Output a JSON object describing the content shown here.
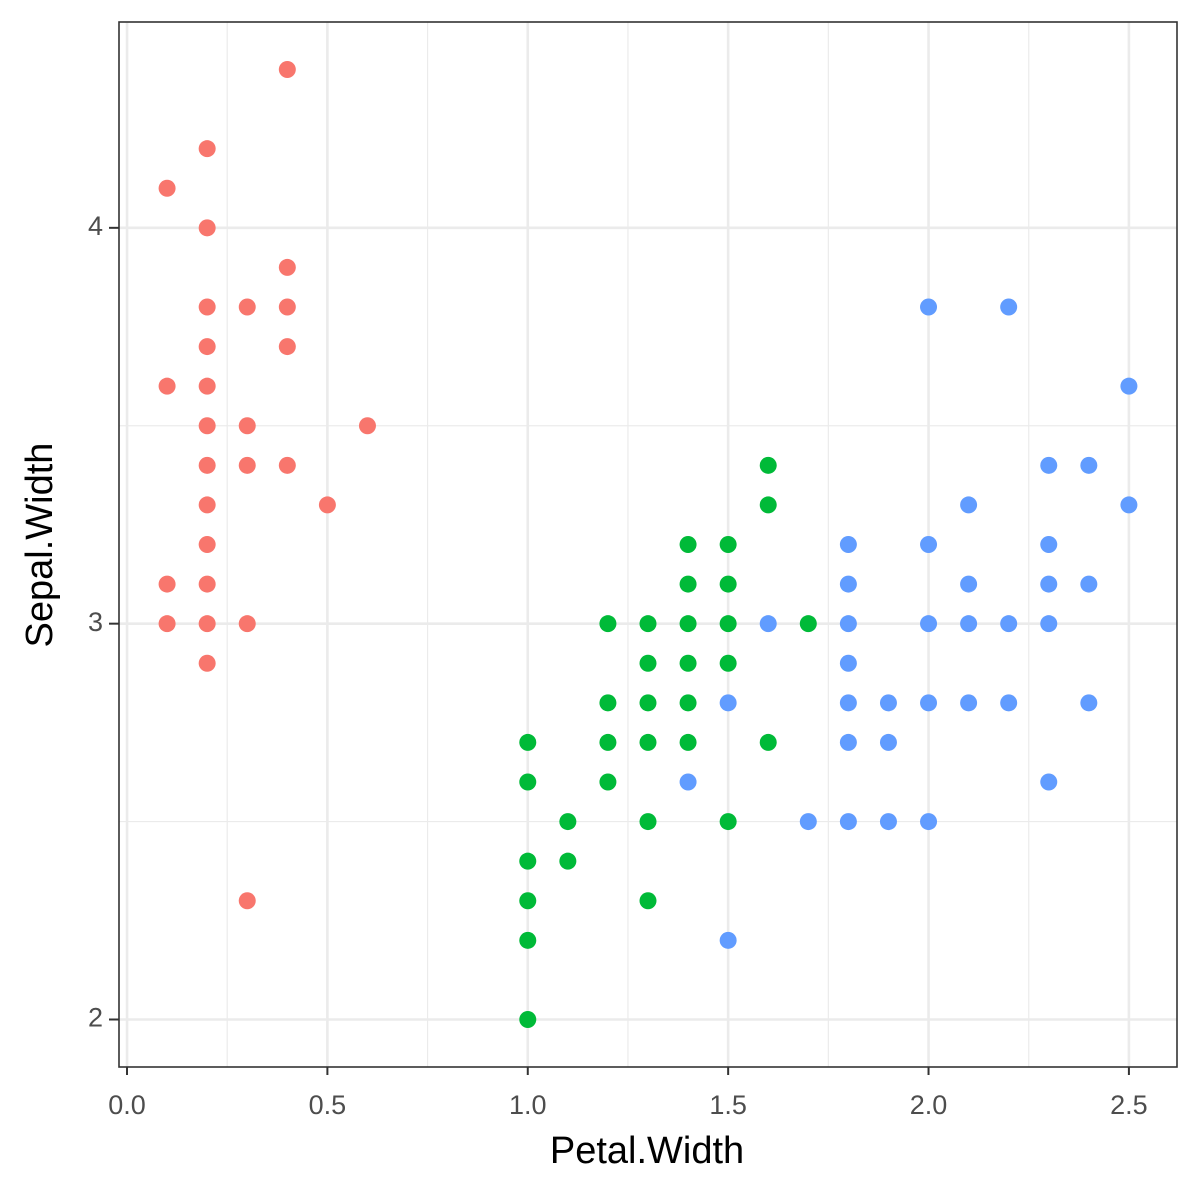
{
  "chart_data": {
    "type": "scatter",
    "x_label": "Petal.Width",
    "y_label": "Sepal.Width",
    "xlim": [
      -0.02,
      2.62
    ],
    "ylim": [
      1.88,
      4.52
    ],
    "xticks": [
      {
        "value": 0,
        "label": "0.0"
      },
      0.5,
      {
        "value": 1,
        "label": "1.0"
      },
      1.5,
      {
        "value": 2,
        "label": "2.0"
      },
      2.5
    ],
    "yticks": [
      2,
      3,
      4
    ],
    "x_minor_grid": [
      0.25,
      0.75,
      1.25,
      1.75,
      2.25
    ],
    "y_minor_grid": [
      2.5,
      3.5
    ],
    "grid": true,
    "series": [
      {
        "color": "#f8766d",
        "x": [
          0.1,
          0.1,
          0.1,
          0.1,
          0.2,
          0.2,
          0.2,
          0.2,
          0.2,
          0.2,
          0.2,
          0.2,
          0.2,
          0.2,
          0.2,
          0.2,
          0.3,
          0.3,
          0.3,
          0.3,
          0.3,
          0.4,
          0.4,
          0.4,
          0.4,
          0.4,
          0.5,
          0.6
        ],
        "y": [
          4.1,
          3.6,
          3.1,
          3.0,
          4.2,
          4.0,
          3.8,
          3.7,
          3.6,
          3.5,
          3.4,
          3.3,
          3.2,
          3.1,
          3.0,
          2.9,
          3.8,
          3.5,
          3.4,
          3.0,
          2.3,
          4.4,
          3.9,
          3.8,
          3.7,
          3.4,
          3.3,
          3.5
        ]
      },
      {
        "color": "#00ba38",
        "x": [
          1.0,
          1.0,
          1.0,
          1.0,
          1.0,
          1.0,
          1.1,
          1.1,
          1.2,
          1.2,
          1.2,
          1.2,
          1.3,
          1.3,
          1.3,
          1.3,
          1.3,
          1.3,
          1.4,
          1.4,
          1.4,
          1.4,
          1.4,
          1.4,
          1.5,
          1.5,
          1.5,
          1.5,
          1.5,
          1.6,
          1.6,
          1.6,
          1.7
        ],
        "y": [
          2.7,
          2.6,
          2.4,
          2.3,
          2.2,
          2.0,
          2.5,
          2.4,
          3.0,
          2.8,
          2.7,
          2.6,
          3.0,
          2.9,
          2.8,
          2.7,
          2.5,
          2.3,
          3.2,
          3.1,
          3.0,
          2.9,
          2.8,
          2.7,
          3.2,
          3.1,
          3.0,
          2.9,
          2.5,
          3.4,
          3.3,
          2.7,
          3.0
        ]
      },
      {
        "color": "#619cff",
        "x": [
          1.4,
          1.5,
          1.5,
          1.6,
          1.7,
          1.8,
          1.8,
          1.8,
          1.8,
          1.8,
          1.8,
          1.8,
          1.9,
          1.9,
          1.9,
          2.0,
          2.0,
          2.0,
          2.0,
          2.0,
          2.1,
          2.1,
          2.1,
          2.1,
          2.2,
          2.2,
          2.2,
          2.3,
          2.3,
          2.3,
          2.3,
          2.3,
          2.4,
          2.4,
          2.4,
          2.5,
          2.5
        ],
        "y": [
          2.6,
          2.8,
          2.2,
          3.0,
          2.5,
          3.2,
          3.1,
          3.0,
          2.9,
          2.8,
          2.7,
          2.5,
          2.8,
          2.7,
          2.5,
          3.8,
          3.2,
          3.0,
          2.8,
          2.5,
          3.3,
          3.1,
          3.0,
          2.8,
          3.8,
          3.0,
          2.8,
          3.4,
          3.2,
          3.1,
          3.0,
          2.6,
          3.4,
          3.1,
          2.8,
          3.6,
          3.3
        ]
      }
    ]
  }
}
